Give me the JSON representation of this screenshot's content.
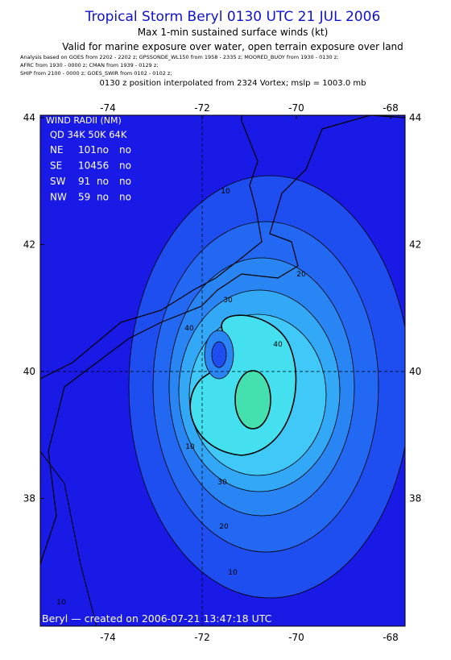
{
  "header": {
    "title": "Tropical Storm Beryl 0130 UTC 21 JUL 2006",
    "subtitle": "Max 1-min sustained surface winds (kt)",
    "validity": "Valid for marine exposure over water, open terrain exposure over land",
    "analysis": [
      "Analysis based on  GOES from 2202 - 2202 z;  GPSSONDE_WL150 from 1958 - 2335 z;  MOORED_BUOY from 1930 - 0130 z;",
      "AFRC from 1930 - 0000 z;  CMAN from 1939 - 0129 z;",
      "SHIP from 2100 - 0000 z;  GOES_SWIR from 0102 - 0102 z;"
    ],
    "position": "0130 z position interpolated from 2324 Vortex; mslp = 1003.0 mb"
  },
  "map": {
    "lonticks": [
      -74,
      -72,
      -70,
      -68
    ],
    "latticks": [
      44,
      42,
      40,
      38
    ],
    "wind_radii": {
      "title": "WIND RADII (NM)",
      "header": "QD 34K 50K 64K",
      "rows": [
        [
          "NE",
          "101",
          "no",
          "no"
        ],
        [
          "SE",
          "104",
          "56",
          "no"
        ],
        [
          "SW",
          "91",
          "no",
          "no"
        ],
        [
          "NW",
          "59",
          "no",
          "no"
        ]
      ]
    },
    "contour_labels": [
      10,
      20,
      30,
      40,
      10,
      20,
      30,
      40,
      10,
      10
    ],
    "footer": "Beryl — created on 2006-07-21 13:47:18 UTC"
  }
}
